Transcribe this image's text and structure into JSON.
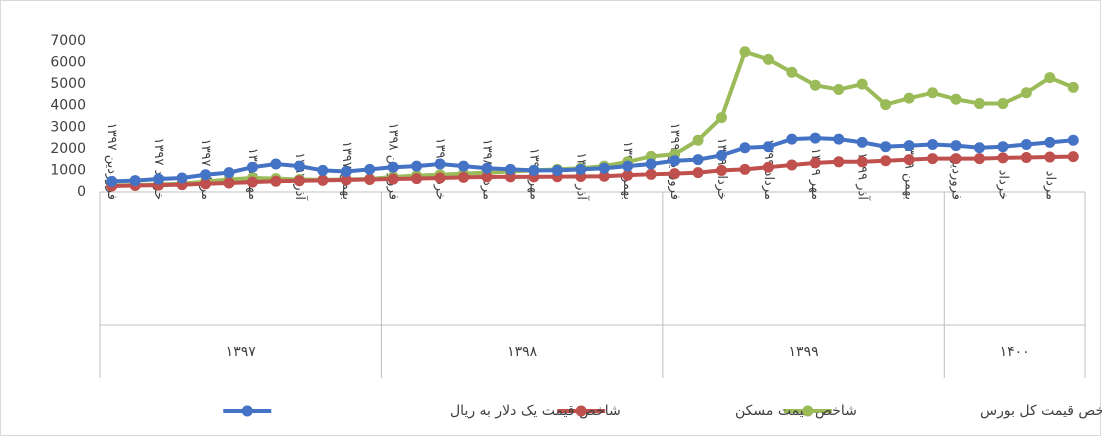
{
  "chart_data": {
    "type": "line",
    "categories": [
      "فروردین ۱۳۹۷",
      null,
      "خرداد ۱۳۹۷",
      null,
      "مرداد ۱۳۹۷",
      null,
      "مهر ۱۳۹۷",
      null,
      "آذر ۱۳۹۷",
      null,
      "بهمن ۱۳۹۷",
      null,
      "فروردین ۱۳۹۸",
      null,
      "خرداد ۱۳۹۸",
      null,
      "مرداد ۱۳۹۸",
      null,
      "مهر ۱۳۹۸",
      null,
      "آذر ۱۳۹۸",
      null,
      "بهمن ۱۳۹۸",
      null,
      "فروردین ۱۳۹۹",
      null,
      "خرداد ۱۳۹۹",
      null,
      "مرداد ۱۳۹۹",
      null,
      "مهر ۱۳۹۹",
      null,
      "آذر ۱۳۹۹",
      null,
      "بهمن ۱۳۹۹",
      null,
      "فروردین",
      null,
      "خرداد",
      null,
      "مرداد",
      null
    ],
    "groups": [
      "۱۳۹۷",
      "۱۳۹۸",
      "۱۳۹۹",
      "۱۴۰۰"
    ],
    "group_sizes": [
      12,
      12,
      12,
      6
    ],
    "series": [
      {
        "name": "شاخص قیمت کل بورس",
        "color": "#9bbb59",
        "values": [
          300,
          320,
          350,
          380,
          480,
          580,
          650,
          620,
          580,
          560,
          580,
          600,
          700,
          760,
          800,
          850,
          900,
          950,
          1000,
          1050,
          1100,
          1200,
          1400,
          1650,
          1750,
          2400,
          3450,
          6500,
          6150,
          5550,
          4950,
          4750,
          5000,
          4050,
          4350,
          4600,
          4300,
          4100,
          4100,
          4600,
          5300,
          4850
        ]
      },
      {
        "name": "شاخص قیمت مسکن",
        "color": "#c0504d",
        "values": [
          280,
          300,
          320,
          340,
          380,
          420,
          460,
          500,
          520,
          540,
          560,
          580,
          600,
          620,
          650,
          680,
          700,
          700,
          700,
          710,
          720,
          730,
          780,
          820,
          850,
          900,
          1000,
          1050,
          1150,
          1250,
          1350,
          1400,
          1400,
          1450,
          1500,
          1550,
          1550,
          1550,
          1580,
          1600,
          1620,
          1640
        ]
      },
      {
        "name": "شاخص قیمت یک دلار به ریال",
        "color": "#4472c4",
        "values": [
          490,
          530,
          600,
          650,
          800,
          900,
          1150,
          1300,
          1200,
          1000,
          950,
          1050,
          1150,
          1200,
          1300,
          1200,
          1100,
          1050,
          1000,
          1000,
          1050,
          1100,
          1200,
          1300,
          1450,
          1500,
          1700,
          2050,
          2100,
          2450,
          2500,
          2450,
          2300,
          2100,
          2150,
          2200,
          2150,
          2050,
          2100,
          2200,
          2300,
          2400
        ]
      }
    ],
    "ylim": [
      0,
      7000
    ],
    "yticks": [
      0,
      1000,
      2000,
      3000,
      4000,
      5000,
      6000,
      7000
    ],
    "grid": false
  }
}
